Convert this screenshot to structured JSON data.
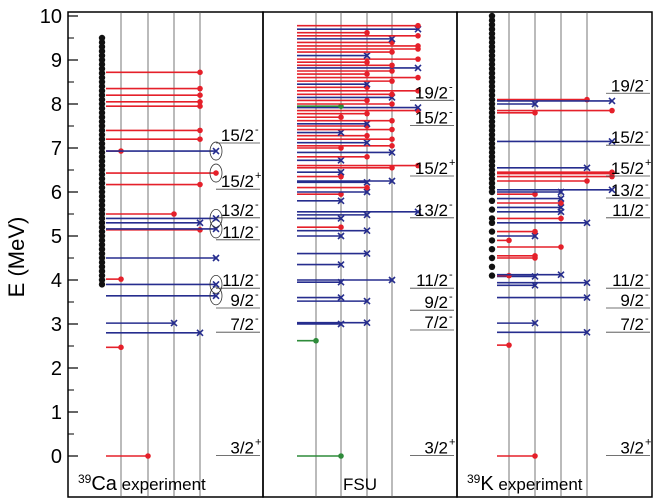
{
  "chart_data": {
    "type": "scatter",
    "ylabel": "E (MeV)",
    "ylim": [
      0,
      10
    ],
    "y_ticks": [
      "0",
      "1",
      "2",
      "3",
      "4",
      "5",
      "6",
      "7",
      "8",
      "9",
      "10"
    ],
    "colors": {
      "red": "#e5202a",
      "blue": "#262d8e",
      "green": "#2e8b3a",
      "black": "#111111"
    },
    "panels": [
      {
        "id": "ca39",
        "nucleus_mass": "39",
        "nucleus": "Ca",
        "label_suffix": "experiment",
        "black_dots": [
          3.9,
          4.0,
          4.1,
          4.2,
          4.3,
          4.4,
          4.5,
          4.6,
          4.7,
          4.8,
          4.9,
          5.0,
          5.1,
          5.2,
          5.3,
          5.4,
          5.5,
          5.6,
          5.7,
          5.8,
          5.9,
          6.0,
          6.1,
          6.2,
          6.3,
          6.4,
          6.5,
          6.6,
          6.7,
          6.8,
          6.9,
          7.0,
          7.1,
          7.2,
          7.3,
          7.4,
          7.5,
          7.6,
          7.7,
          7.8,
          7.9,
          8.0,
          8.1,
          8.2,
          8.3,
          8.4,
          8.5,
          8.6,
          8.7,
          8.8,
          8.9,
          9.0,
          9.1,
          9.2,
          9.3,
          9.4,
          9.5
        ],
        "lines": [
          {
            "e": 0.0,
            "c": "red",
            "end": 1.0
          },
          {
            "e": 2.47,
            "c": "red",
            "end": 0.0
          },
          {
            "e": 2.8,
            "c": "blue",
            "end": 3.0,
            "x": true
          },
          {
            "e": 3.02,
            "c": "blue",
            "end": 2.0,
            "x": true
          },
          {
            "e": 3.64,
            "c": "blue",
            "end": 6.0,
            "x": true,
            "paren": true
          },
          {
            "e": 3.9,
            "c": "blue",
            "end": 7.0,
            "x": true,
            "paren": true
          },
          {
            "e": 4.02,
            "c": "red",
            "end": 0.0
          },
          {
            "e": 4.5,
            "c": "blue",
            "end": 5.0,
            "x": true
          },
          {
            "e": 5.14,
            "c": "red",
            "end": 3.0
          },
          {
            "e": 5.16,
            "c": "blue",
            "end": 7.0,
            "x": true,
            "paren": true
          },
          {
            "e": 5.3,
            "c": "blue",
            "end": 3.0,
            "x": true
          },
          {
            "e": 5.4,
            "c": "blue",
            "end": 8.0,
            "x": true,
            "paren": true
          },
          {
            "e": 5.5,
            "c": "red",
            "end": 2.0
          },
          {
            "e": 6.17,
            "c": "red",
            "end": 3.0
          },
          {
            "e": 6.43,
            "c": "red",
            "end": 9.0,
            "paren": true
          },
          {
            "e": 6.93,
            "c": "red",
            "end": 0.0
          },
          {
            "e": 6.93,
            "c": "blue",
            "end": 9.0,
            "x": true,
            "paren": true
          },
          {
            "e": 7.2,
            "c": "red",
            "end": 3.0
          },
          {
            "e": 7.4,
            "c": "red",
            "end": 3.0
          },
          {
            "e": 7.95,
            "c": "red",
            "end": 3.0
          },
          {
            "e": 8.05,
            "c": "red",
            "end": 3.0
          },
          {
            "e": 8.2,
            "c": "red",
            "end": 3.0
          },
          {
            "e": 8.35,
            "c": "red",
            "end": 3.0
          },
          {
            "e": 8.72,
            "c": "red",
            "end": 3.0
          }
        ],
        "spin_labels": [
          {
            "e": 0.15,
            "text": "3/2",
            "parity": "+"
          },
          {
            "e": 2.95,
            "text": "7/2",
            "parity": "-"
          },
          {
            "e": 3.5,
            "text": "9/2",
            "parity": "-"
          },
          {
            "e": 3.95,
            "text": "11/2",
            "parity": "-"
          },
          {
            "e": 5.05,
            "text": "11/2",
            "parity": "-"
          },
          {
            "e": 5.55,
            "text": "13/2",
            "parity": "-"
          },
          {
            "e": 6.2,
            "text": "15/2",
            "parity": "+"
          },
          {
            "e": 7.25,
            "text": "15/2",
            "parity": "-"
          }
        ]
      },
      {
        "id": "fsu",
        "label": "FSU",
        "lines": [
          {
            "e": 0.0,
            "c": "green",
            "end": 1.0
          },
          {
            "e": 2.62,
            "c": "green",
            "end": 0.0
          },
          {
            "e": 3.0,
            "c": "blue",
            "end": 1.0,
            "x": true
          },
          {
            "e": 3.03,
            "c": "blue",
            "end": 2.0,
            "x": true
          },
          {
            "e": 3.52,
            "c": "blue",
            "end": 2.0,
            "x": true
          },
          {
            "e": 3.6,
            "c": "blue",
            "end": 1.0,
            "x": true
          },
          {
            "e": 3.95,
            "c": "blue",
            "end": 1.0,
            "x": true
          },
          {
            "e": 4.0,
            "c": "blue",
            "end": 3.0,
            "x": true
          },
          {
            "e": 4.35,
            "c": "blue",
            "end": 1.0,
            "x": true
          },
          {
            "e": 4.6,
            "c": "blue",
            "end": 2.0,
            "x": true
          },
          {
            "e": 5.0,
            "c": "blue",
            "end": 1.0,
            "x": true
          },
          {
            "e": 5.12,
            "c": "blue",
            "end": 2.0,
            "x": true
          },
          {
            "e": 5.2,
            "c": "red",
            "end": 1.0
          },
          {
            "e": 5.4,
            "c": "blue",
            "end": 1.0,
            "x": true
          },
          {
            "e": 5.48,
            "c": "blue",
            "end": 2.0,
            "x": true
          },
          {
            "e": 5.55,
            "c": "blue",
            "end": 4.0,
            "x": true
          },
          {
            "e": 5.8,
            "c": "blue",
            "end": 1.0,
            "x": true
          },
          {
            "e": 5.95,
            "c": "red",
            "end": 1.0
          },
          {
            "e": 6.0,
            "c": "blue",
            "end": 2.0,
            "x": true
          },
          {
            "e": 6.1,
            "c": "red",
            "end": 2.0
          },
          {
            "e": 6.22,
            "c": "blue",
            "end": 2.0,
            "x": true
          },
          {
            "e": 6.25,
            "c": "blue",
            "end": 3.0,
            "x": true
          },
          {
            "e": 6.35,
            "c": "red",
            "end": 1.0
          },
          {
            "e": 6.45,
            "c": "blue",
            "end": 1.0,
            "x": true
          },
          {
            "e": 6.55,
            "c": "red",
            "end": 3.0
          },
          {
            "e": 6.6,
            "c": "red",
            "end": 4.0
          },
          {
            "e": 6.72,
            "c": "blue",
            "end": 1.0,
            "x": true
          },
          {
            "e": 6.8,
            "c": "red",
            "end": 2.0
          },
          {
            "e": 6.9,
            "c": "blue",
            "end": 3.0,
            "x": true
          },
          {
            "e": 7.0,
            "c": "red",
            "end": 1.0
          },
          {
            "e": 7.05,
            "c": "red",
            "end": 3.0
          },
          {
            "e": 7.12,
            "c": "blue",
            "end": 2.0,
            "x": true
          },
          {
            "e": 7.2,
            "c": "red",
            "end": 3.0
          },
          {
            "e": 7.28,
            "c": "red",
            "end": 2.0
          },
          {
            "e": 7.35,
            "c": "blue",
            "end": 1.0,
            "x": true
          },
          {
            "e": 7.42,
            "c": "red",
            "end": 3.0
          },
          {
            "e": 7.5,
            "c": "red",
            "end": 2.0
          },
          {
            "e": 7.55,
            "c": "blue",
            "end": 2.0,
            "x": true
          },
          {
            "e": 7.62,
            "c": "red",
            "end": 3.0
          },
          {
            "e": 7.7,
            "c": "red",
            "end": 1.0
          },
          {
            "e": 7.78,
            "c": "red",
            "end": 2.0
          },
          {
            "e": 7.85,
            "c": "red",
            "end": 4.0
          },
          {
            "e": 7.92,
            "c": "blue",
            "end": 5.0,
            "x": true
          },
          {
            "e": 7.95,
            "c": "green",
            "end": 1.0
          },
          {
            "e": 8.0,
            "c": "red",
            "end": 3.0
          },
          {
            "e": 8.08,
            "c": "red",
            "end": 2.0
          },
          {
            "e": 8.15,
            "c": "blue",
            "end": 3.0,
            "x": true
          },
          {
            "e": 8.22,
            "c": "red",
            "end": 3.0
          },
          {
            "e": 8.3,
            "c": "red",
            "end": 4.0
          },
          {
            "e": 8.38,
            "c": "red",
            "end": 2.0
          },
          {
            "e": 8.45,
            "c": "blue",
            "end": 2.0,
            "x": true
          },
          {
            "e": 8.52,
            "c": "red",
            "end": 3.0
          },
          {
            "e": 8.6,
            "c": "red",
            "end": 4.0
          },
          {
            "e": 8.68,
            "c": "red",
            "end": 2.0
          },
          {
            "e": 8.75,
            "c": "red",
            "end": 3.0
          },
          {
            "e": 8.82,
            "c": "blue",
            "end": 4.0,
            "x": true
          },
          {
            "e": 8.88,
            "c": "red",
            "end": 3.0
          },
          {
            "e": 8.95,
            "c": "red",
            "end": 2.0
          },
          {
            "e": 9.02,
            "c": "red",
            "end": 4.0
          },
          {
            "e": 9.1,
            "c": "blue",
            "end": 2.0,
            "x": true
          },
          {
            "e": 9.18,
            "c": "red",
            "end": 3.0
          },
          {
            "e": 9.25,
            "c": "red",
            "end": 4.0
          },
          {
            "e": 9.32,
            "c": "red",
            "end": 5.0
          },
          {
            "e": 9.4,
            "c": "red",
            "end": 3.0
          },
          {
            "e": 9.48,
            "c": "blue",
            "end": 3.0,
            "x": true
          },
          {
            "e": 9.55,
            "c": "red",
            "end": 4.0
          },
          {
            "e": 9.62,
            "c": "red",
            "end": 2.0
          },
          {
            "e": 9.7,
            "c": "blue",
            "end": 4.0,
            "x": true
          },
          {
            "e": 9.78,
            "c": "red",
            "end": 4.0
          }
        ],
        "spin_labels": [
          {
            "e": 0.15,
            "text": "3/2",
            "parity": "+"
          },
          {
            "e": 3.0,
            "text": "7/2",
            "parity": "-"
          },
          {
            "e": 3.45,
            "text": "9/2",
            "parity": "-"
          },
          {
            "e": 3.95,
            "text": "11/2",
            "parity": "-"
          },
          {
            "e": 5.55,
            "text": "13/2",
            "parity": "-"
          },
          {
            "e": 6.5,
            "text": "15/2",
            "parity": "+"
          },
          {
            "e": 7.65,
            "text": "15/2",
            "parity": "-"
          },
          {
            "e": 8.22,
            "text": "19/2",
            "parity": "-"
          }
        ]
      },
      {
        "id": "k39",
        "nucleus_mass": "39",
        "nucleus": "K",
        "label_suffix": "experiment",
        "black_dots": [
          4.1,
          4.3,
          4.5,
          4.7,
          4.9,
          5.1,
          5.3,
          5.4,
          5.6,
          5.8,
          6.0,
          6.1,
          6.2,
          6.3,
          6.4,
          6.5,
          6.6,
          6.7,
          6.8,
          6.9,
          7.0,
          7.1,
          7.2,
          7.3,
          7.4,
          7.5,
          7.6,
          7.7,
          7.8,
          7.9,
          8.0,
          8.1,
          8.2,
          8.3,
          8.4,
          8.5,
          8.6,
          8.7,
          8.8,
          8.9,
          9.0,
          9.1,
          9.2,
          9.3,
          9.4,
          9.5,
          9.6,
          9.7,
          9.8,
          9.9,
          10.0
        ],
        "lines": [
          {
            "e": 0.0,
            "c": "red",
            "end": 1.0
          },
          {
            "e": 2.52,
            "c": "red",
            "end": 0.0
          },
          {
            "e": 2.81,
            "c": "blue",
            "end": 3.0,
            "x": true
          },
          {
            "e": 3.02,
            "c": "blue",
            "end": 1.0,
            "x": true
          },
          {
            "e": 3.6,
            "c": "blue",
            "end": 3.0,
            "x": true
          },
          {
            "e": 3.88,
            "c": "blue",
            "end": 1.0,
            "x": true
          },
          {
            "e": 3.94,
            "c": "blue",
            "end": 3.0,
            "x": true
          },
          {
            "e": 4.08,
            "c": "blue",
            "end": 1.0,
            "x": true
          },
          {
            "e": 4.1,
            "c": "red",
            "end": 0.0
          },
          {
            "e": 4.12,
            "c": "blue",
            "end": 2.0,
            "x": true
          },
          {
            "e": 4.5,
            "c": "red",
            "end": 1.0
          },
          {
            "e": 4.55,
            "c": "red",
            "end": 1.0
          },
          {
            "e": 4.75,
            "c": "red",
            "end": 2.0
          },
          {
            "e": 4.9,
            "c": "red",
            "end": 0.0
          },
          {
            "e": 5.0,
            "c": "blue",
            "end": 1.0,
            "x": true
          },
          {
            "e": 5.1,
            "c": "red",
            "end": 1.0
          },
          {
            "e": 5.3,
            "c": "blue",
            "end": 3.0,
            "x": true
          },
          {
            "e": 5.4,
            "c": "red",
            "end": 2.0
          },
          {
            "e": 5.55,
            "c": "blue",
            "end": 2.0,
            "x": true
          },
          {
            "e": 5.65,
            "c": "blue",
            "end": 2.0,
            "x": true
          },
          {
            "e": 5.75,
            "c": "red",
            "end": 2.0
          },
          {
            "e": 5.85,
            "c": "blue",
            "end": 2.0,
            "x": true
          },
          {
            "e": 5.95,
            "c": "red",
            "end": 1.0
          },
          {
            "e": 6.0,
            "c": "blue",
            "end": 2.0,
            "x": true
          },
          {
            "e": 6.05,
            "c": "blue",
            "end": 4.0,
            "x": true
          },
          {
            "e": 6.25,
            "c": "red",
            "end": 3.0
          },
          {
            "e": 6.35,
            "c": "red",
            "end": 5.0
          },
          {
            "e": 6.42,
            "c": "red",
            "end": 5.0
          },
          {
            "e": 6.45,
            "c": "red",
            "end": 4.0
          },
          {
            "e": 6.55,
            "c": "blue",
            "end": 3.0,
            "x": true
          },
          {
            "e": 7.15,
            "c": "blue",
            "end": 5.0,
            "x": true
          },
          {
            "e": 7.8,
            "c": "red",
            "end": 1.0
          },
          {
            "e": 7.85,
            "c": "red",
            "end": 5.0
          },
          {
            "e": 8.0,
            "c": "blue",
            "end": 1.0,
            "x": true
          },
          {
            "e": 8.1,
            "c": "red",
            "end": 3.0
          },
          {
            "e": 8.07,
            "c": "blue",
            "end": 5.0,
            "x": true
          }
        ],
        "spin_labels": [
          {
            "e": 0.15,
            "text": "3/2",
            "parity": "+"
          },
          {
            "e": 2.95,
            "text": "7/2",
            "parity": "-"
          },
          {
            "e": 3.5,
            "text": "9/2",
            "parity": "-"
          },
          {
            "e": 3.95,
            "text": "11/2",
            "parity": "-"
          },
          {
            "e": 5.55,
            "text": "11/2",
            "parity": "-"
          },
          {
            "e": 6.0,
            "text": "13/2",
            "parity": "-"
          },
          {
            "e": 6.5,
            "text": "15/2",
            "parity": "+"
          },
          {
            "e": 7.2,
            "text": "15/2",
            "parity": "-"
          },
          {
            "e": 8.38,
            "text": "19/2",
            "parity": "-"
          }
        ]
      }
    ]
  }
}
